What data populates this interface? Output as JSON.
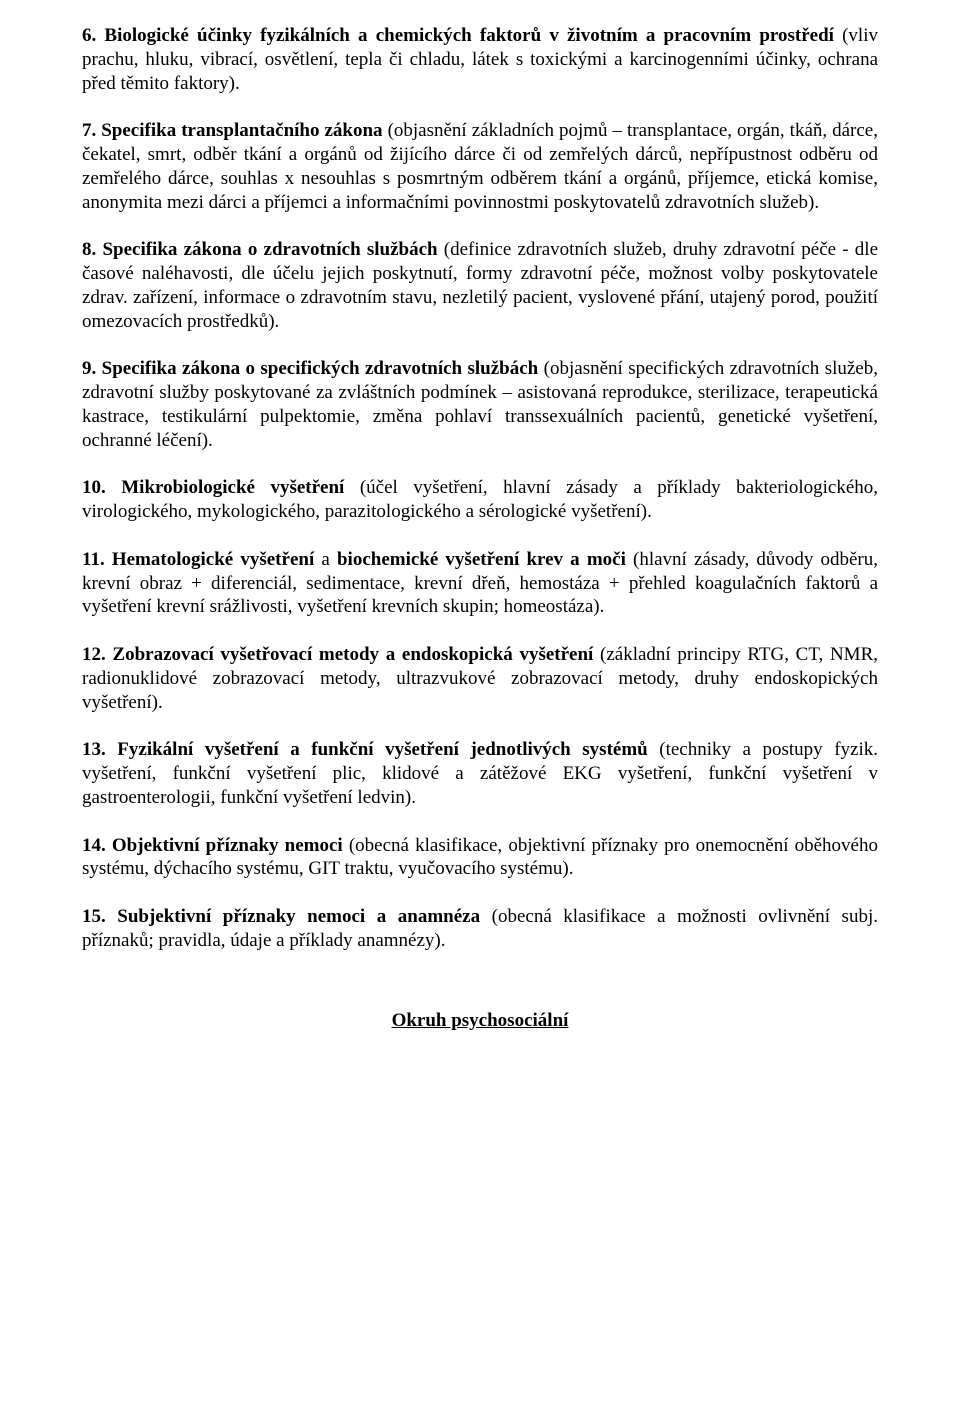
{
  "paragraphs": [
    {
      "runs": [
        {
          "text": "6. Biologické účinky fyzikálních a chemických faktorů v životním a pracovním prostředí ",
          "bold": true
        },
        {
          "text": "(vliv prachu, hluku, vibrací, osvětlení, tepla či chladu, látek s toxickými a karcinogenními účinky, ochrana před těmito faktory)."
        }
      ]
    },
    {
      "runs": [
        {
          "text": "7. Specifika transplantačního zákona ",
          "bold": true
        },
        {
          "text": "(objasnění základních pojmů – transplantace, orgán, tkáň, dárce, čekatel, smrt, odběr tkání a orgánů od žijícího dárce či od zemřelých dárců, nepřípustnost odběru od zemřelého dárce, souhlas x nesouhlas s posmrtným odběrem tkání a orgánů, příjemce, etická komise, anonymita mezi dárci a příjemci a informačními povinnostmi poskytovatelů zdravotních služeb)."
        }
      ]
    },
    {
      "runs": [
        {
          "text": "8. Specifika zákona o zdravotních službách ",
          "bold": true
        },
        {
          "text": "(definice zdravotních služeb, druhy zdravotní péče - dle časové naléhavosti, dle účelu jejich poskytnutí, formy zdravotní péče, možnost volby poskytovatele zdrav. zařízení, informace o zdravotním stavu, nezletilý pacient, vyslovené přání, utajený porod, použití omezovacích prostředků)."
        }
      ]
    },
    {
      "runs": [
        {
          "text": "9. Specifika zákona o specifických zdravotních službách ",
          "bold": true
        },
        {
          "text": "(objasnění specifických zdravotních služeb, zdravotní služby poskytované za zvláštních podmínek – asistovaná reprodukce, sterilizace, terapeutická kastrace, testikulární pulpektomie, změna pohlaví transsexuálních pacientů, genetické vyšetření, ochranné léčení)."
        }
      ]
    },
    {
      "runs": [
        {
          "text": "10. Mikrobiologické vyšetření ",
          "bold": true
        },
        {
          "text": "(účel vyšetření, hlavní zásady a příklady bakteriologického, virologického, mykologického, parazitologického a sérologické vyšetření)."
        }
      ]
    },
    {
      "runs": [
        {
          "text": "11. Hematologické vyšetření ",
          "bold": true
        },
        {
          "text": "a ",
          "bold": false
        },
        {
          "text": "biochemické vyšetření krev a moči ",
          "bold": true
        },
        {
          "text": "(hlavní zásady, důvody odběru, krevní obraz + diferenciál, sedimentace, krevní dřeň, hemostáza + přehled koagulačních faktorů a vyšetření krevní srážlivosti, vyšetření krevních skupin; homeostáza)."
        }
      ]
    },
    {
      "runs": [
        {
          "text": "12. Zobrazovací vyšetřovací metody a endoskopická vyšetření ",
          "bold": true
        },
        {
          "text": "(základní principy RTG, CT, NMR, radionuklidové zobrazovací metody, ultrazvukové zobrazovací metody, druhy endoskopických vyšetření)."
        }
      ]
    },
    {
      "runs": [
        {
          "text": "13. Fyzikální vyšetření a funkční vyšetření jednotlivých systémů ",
          "bold": true
        },
        {
          "text": "(techniky a postupy fyzik. vyšetření, funkční vyšetření plic, klidové a zátěžové EKG vyšetření, funkční vyšetření v gastroenterologii, funkční vyšetření ledvin)."
        }
      ]
    },
    {
      "runs": [
        {
          "text": "14. Objektivní příznaky nemoci ",
          "bold": true
        },
        {
          "text": "(obecná klasifikace, objektivní příznaky pro onemocnění oběhového systému, dýchacího systému, GIT traktu, vyučovacího systému)."
        }
      ]
    },
    {
      "runs": [
        {
          "text": "15. Subjektivní příznaky nemoci a anamnéza ",
          "bold": true
        },
        {
          "text": "(obecná klasifikace a možnosti ovlivnění subj. příznaků; pravidla, údaje a příklady anamnézy)."
        }
      ]
    }
  ],
  "section_title": "Okruh psychosociální"
}
